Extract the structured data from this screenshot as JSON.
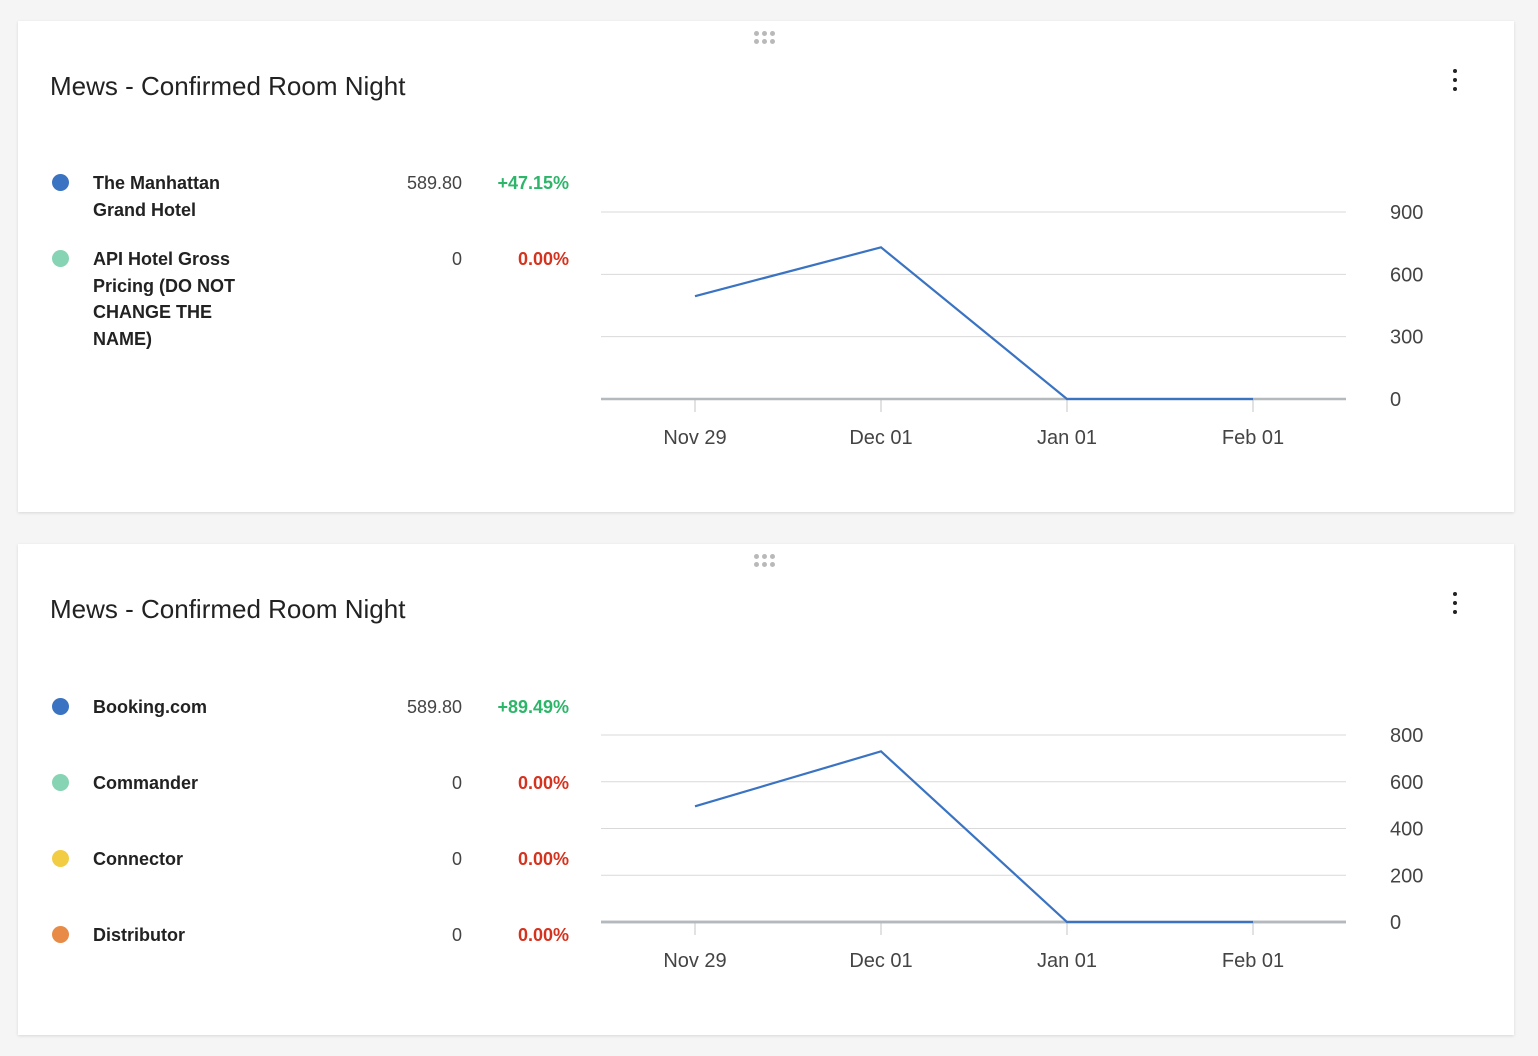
{
  "cards": [
    {
      "title": "Mews - Confirmed Room Night",
      "legend": [
        {
          "name": "The Manhattan Grand Hotel",
          "value": "589.80",
          "change": "+47.15%",
          "trend": "positive",
          "color": "#3a73c2"
        },
        {
          "name": "API Hotel Gross Pricing (DO NOT CHANGE THE NAME)",
          "value": "0",
          "change": "0.00%",
          "trend": "negative",
          "color": "#86d4b3"
        }
      ]
    },
    {
      "title": "Mews - Confirmed Room Night",
      "legend": [
        {
          "name": "Booking.com",
          "value": "589.80",
          "change": "+89.49%",
          "trend": "positive",
          "color": "#3a73c2"
        },
        {
          "name": "Commander",
          "value": "0",
          "change": "0.00%",
          "trend": "negative",
          "color": "#86d4b3"
        },
        {
          "name": "Connector",
          "value": "0",
          "change": "0.00%",
          "trend": "negative",
          "color": "#f2cd44"
        },
        {
          "name": "Distributor",
          "value": "0",
          "change": "0.00%",
          "trend": "negative",
          "color": "#e88b46"
        }
      ]
    }
  ],
  "chart_data": [
    {
      "type": "line",
      "title": "Mews - Confirmed Room Night",
      "x_ticks": [
        "Nov 29",
        "Dec 01",
        "Jan 01",
        "Feb 01"
      ],
      "y_ticks": [
        0,
        300,
        600,
        900
      ],
      "ylim": [
        0,
        900
      ],
      "grid": true,
      "y_axis_position": "right",
      "series": [
        {
          "name": "The Manhattan Grand Hotel",
          "color": "#3a73c2",
          "points": [
            {
              "x": "Nov 29",
              "y": 495
            },
            {
              "x": "Dec 01",
              "y": 730
            },
            {
              "x": "Jan 01",
              "y": 0
            },
            {
              "x": "Feb 01",
              "y": 0
            }
          ]
        },
        {
          "name": "API Hotel Gross Pricing (DO NOT CHANGE THE NAME)",
          "color": "#86d4b3",
          "points": [
            {
              "x": "Nov 29",
              "y": 0
            },
            {
              "x": "Dec 01",
              "y": 0
            },
            {
              "x": "Jan 01",
              "y": 0
            },
            {
              "x": "Feb 01",
              "y": 0
            }
          ]
        }
      ]
    },
    {
      "type": "line",
      "title": "Mews - Confirmed Room Night",
      "x_ticks": [
        "Nov 29",
        "Dec 01",
        "Jan 01",
        "Feb 01"
      ],
      "y_ticks": [
        0,
        200,
        400,
        600,
        800
      ],
      "ylim": [
        0,
        800
      ],
      "grid": true,
      "y_axis_position": "right",
      "series": [
        {
          "name": "Booking.com",
          "color": "#3a73c2",
          "points": [
            {
              "x": "Nov 29",
              "y": 495
            },
            {
              "x": "Dec 01",
              "y": 730
            },
            {
              "x": "Jan 01",
              "y": 0
            },
            {
              "x": "Feb 01",
              "y": 0
            }
          ]
        },
        {
          "name": "Commander",
          "color": "#86d4b3",
          "points": [
            {
              "x": "Nov 29",
              "y": 0
            },
            {
              "x": "Dec 01",
              "y": 0
            },
            {
              "x": "Jan 01",
              "y": 0
            },
            {
              "x": "Feb 01",
              "y": 0
            }
          ]
        },
        {
          "name": "Connector",
          "color": "#f2cd44",
          "points": [
            {
              "x": "Nov 29",
              "y": 0
            },
            {
              "x": "Dec 01",
              "y": 0
            },
            {
              "x": "Jan 01",
              "y": 0
            },
            {
              "x": "Feb 01",
              "y": 0
            }
          ]
        },
        {
          "name": "Distributor",
          "color": "#e88b46",
          "points": [
            {
              "x": "Nov 29",
              "y": 0
            },
            {
              "x": "Dec 01",
              "y": 0
            },
            {
              "x": "Jan 01",
              "y": 0
            },
            {
              "x": "Feb 01",
              "y": 0
            }
          ]
        }
      ]
    }
  ]
}
